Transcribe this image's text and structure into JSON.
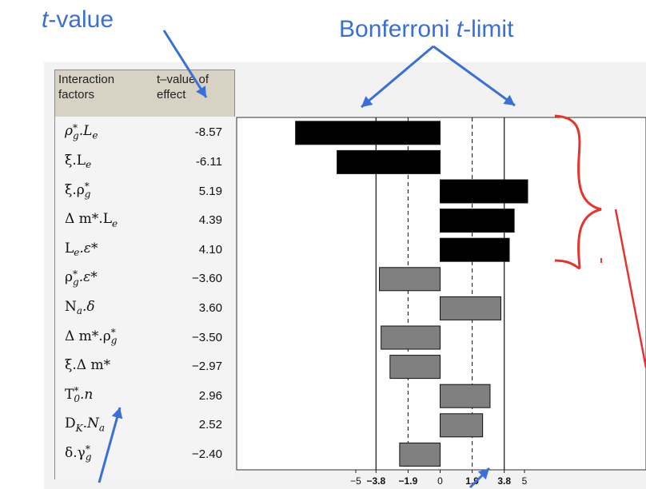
{
  "annotations": {
    "tvalue_prefix": "t",
    "tvalue_suffix": "-value",
    "bonferroni_prefix": "Bonferroni ",
    "bonferroni_italic": "t",
    "bonferroni_suffix": "-limit"
  },
  "table": {
    "header_factors": [
      "Interaction",
      "factors"
    ],
    "header_value": [
      "t–value of",
      "effect"
    ]
  },
  "colors": {
    "annotation_blue": "#3a6fd8",
    "bracket_red": "#e8322c",
    "significant_bar": "#000000",
    "nonsignificant_bar": "#808080"
  },
  "chart_data": {
    "type": "bar",
    "orientation": "horizontal",
    "categories": [
      "ρ*g.Le",
      "ξ.Le",
      "ξ.ρ*g",
      "Δ m*.Le",
      "Le.ε*",
      "ρ*g.ε*",
      "Na.δ",
      "Δ m*.ρ*g",
      "ξ.Δ m*",
      "T*0.n",
      "DK.Na",
      "δ.γ*g"
    ],
    "category_labels": [
      {
        "base": "ρ",
        "sup": "*",
        "sub": "g",
        "mid": ".L",
        "sub2": "e",
        "italic": true
      },
      {
        "base": "ξ.L",
        "sub": "e"
      },
      {
        "base": "ξ.ρ",
        "sup": "*",
        "sub": "g"
      },
      {
        "base": "Δ m*.L",
        "sub": "e"
      },
      {
        "base": "L",
        "sub": "e",
        "mid": ".ε*"
      },
      {
        "base": "ρ",
        "sup": "*",
        "sub": "g",
        "mid": ".ε*"
      },
      {
        "base": "N",
        "sub": "a",
        "mid": ".δ"
      },
      {
        "base": "Δ m*.ρ",
        "sup": "*",
        "sub": "g"
      },
      {
        "base": "ξ.Δ m*"
      },
      {
        "base": "T",
        "sup": "*",
        "sub": "0",
        "mid": ".n"
      },
      {
        "base": "D",
        "sub": "K",
        "mid": ".N",
        "sub2": "a"
      },
      {
        "base": "δ.γ",
        "sup": "*",
        "sub": "g"
      }
    ],
    "value_labels": [
      "-8.57",
      "-6.11",
      "5.19",
      "4.39",
      "4.10",
      "−3.60",
      "3.60",
      "−3.50",
      "−2.97",
      "2.96",
      "2.52",
      "−2.40"
    ],
    "values": [
      -8.57,
      -6.11,
      5.19,
      4.39,
      4.1,
      -3.6,
      3.6,
      -3.5,
      -2.97,
      2.96,
      2.52,
      -2.4
    ],
    "significant": [
      true,
      true,
      true,
      true,
      true,
      false,
      false,
      false,
      false,
      false,
      false,
      false
    ],
    "xticks": [
      "−5",
      "−3.8",
      "−1.9",
      "0",
      "1.9",
      "3.8",
      "5"
    ],
    "xtick_values": [
      -5,
      -3.8,
      -1.9,
      0,
      1.9,
      3.8,
      5
    ],
    "bonferroni_limits": [
      -3.8,
      3.8
    ],
    "t_limits": [
      -1.9,
      1.9
    ],
    "xlim": [
      -9.4,
      9.6
    ]
  }
}
